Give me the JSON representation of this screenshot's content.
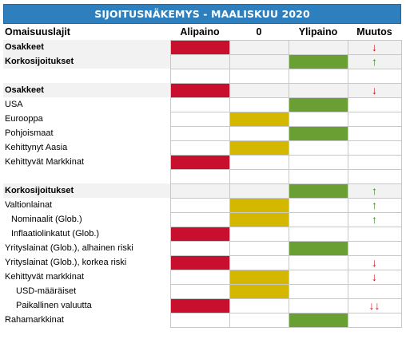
{
  "title": "SIJOITUSNÄKEMYS - MAALISKUU 2020",
  "headers": {
    "label": "Omaisuuslajit",
    "under": "Alipaino",
    "neutral": "0",
    "over": "Ylipaino",
    "change": "Muutos"
  },
  "rows": [
    {
      "label": "Osakkeet",
      "style": "bold",
      "grey": true,
      "weight": "under",
      "change": "↓",
      "dir": "down"
    },
    {
      "label": "Korkosijoitukset",
      "style": "bold",
      "grey": true,
      "weight": "over",
      "change": "↑",
      "dir": "up"
    },
    {
      "label": "",
      "spacer": true
    },
    {
      "label": "Osakkeet",
      "style": "bold",
      "grey": true,
      "weight": "under",
      "change": "↓",
      "dir": "down"
    },
    {
      "label": "USA",
      "weight": "over",
      "change": ""
    },
    {
      "label": "Eurooppa",
      "weight": "neutral",
      "change": ""
    },
    {
      "label": "Pohjoismaat",
      "weight": "over",
      "change": ""
    },
    {
      "label": "Kehittynyt Aasia",
      "weight": "neutral",
      "change": ""
    },
    {
      "label": "Kehittyvät Markkinat",
      "weight": "under",
      "change": ""
    },
    {
      "label": "",
      "spacer": true
    },
    {
      "label": "Korkosijoitukset",
      "style": "bold",
      "grey": true,
      "weight": "over",
      "change": "↑",
      "dir": "up"
    },
    {
      "label": "Valtionlainat",
      "weight": "neutral",
      "change": "↑",
      "dir": "up"
    },
    {
      "label": "Nominaalit (Glob.)",
      "indent": 1,
      "weight": "neutral",
      "change": "↑",
      "dir": "up"
    },
    {
      "label": "Inflaatiolinkatut (Glob.)",
      "indent": 1,
      "weight": "under",
      "change": ""
    },
    {
      "label": "Yrityslainat (Glob.), alhainen riski",
      "weight": "over",
      "change": ""
    },
    {
      "label": "Yrityslainat (Glob.), korkea riski",
      "weight": "under",
      "change": "↓",
      "dir": "down"
    },
    {
      "label": "Kehittyvät markkinat",
      "weight": "neutral",
      "change": "↓",
      "dir": "down"
    },
    {
      "label": "USD-määräiset",
      "indent": 2,
      "weight": "neutral",
      "change": ""
    },
    {
      "label": "Paikallinen valuutta",
      "indent": 2,
      "weight": "under",
      "change": "↓↓",
      "dir": "down"
    },
    {
      "label": "Rahamarkkinat",
      "weight": "over",
      "change": ""
    }
  ],
  "colors": {
    "header_bg": "#2d7fbd",
    "under": "#c8102e",
    "neutral": "#d4b800",
    "over": "#6a9f34",
    "up_arrow": "#3a8a1e",
    "down_arrow": "#d0101c"
  }
}
